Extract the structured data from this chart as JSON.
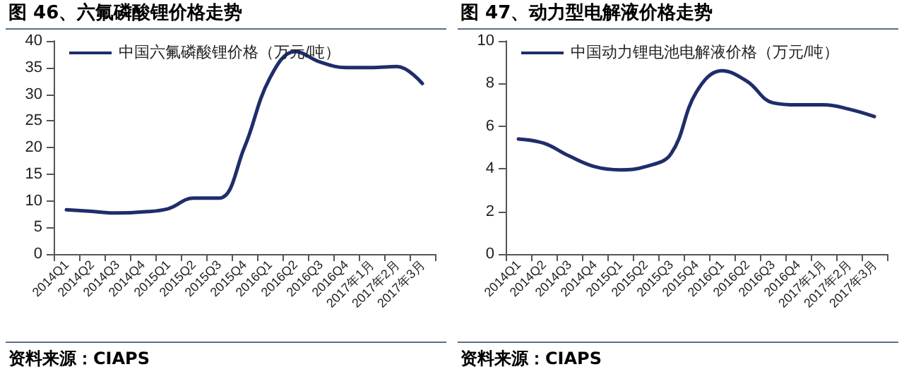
{
  "chart_data": [
    {
      "type": "line",
      "title": "图 46、六氟磷酸锂价格走势",
      "categories": [
        "2014Q1",
        "2014Q2",
        "2014Q3",
        "2014Q4",
        "2015Q1",
        "2015Q2",
        "2015Q3",
        "2015Q4",
        "2016Q1",
        "2016Q2",
        "2016Q3",
        "2016Q4",
        "2017年1月",
        "2017年2月",
        "2017年3月"
      ],
      "series": [
        {
          "name": "中国六氟磷酸锂价格（万元/吨）",
          "color": "#1f2d6b",
          "values": [
            8.3,
            8.0,
            7.7,
            7.9,
            8.5,
            10.5,
            10.5,
            20,
            33,
            38,
            36,
            35,
            35,
            35.2,
            32
          ]
        }
      ],
      "ylim": [
        0,
        40
      ],
      "yticks": [
        0,
        5,
        10,
        15,
        20,
        25,
        30,
        35,
        40
      ],
      "grid": false,
      "legend": "top left",
      "marker": "none",
      "annotations": [
        "资料来源：CIAPS"
      ]
    },
    {
      "type": "line",
      "title": "图 47、动力型电解液价格走势",
      "categories": [
        "2014Q1",
        "2014Q2",
        "2014Q3",
        "2014Q4",
        "2015Q1",
        "2015Q2",
        "2015Q3",
        "2015Q4",
        "2016Q1",
        "2016Q2",
        "2016Q3",
        "2016Q4",
        "2017年1月",
        "2017年2月",
        "2017年3月"
      ],
      "series": [
        {
          "name": "中国动力锂电池电解液价格（万元/吨）",
          "color": "#1f2d6b",
          "values": [
            5.4,
            5.2,
            4.6,
            4.1,
            3.95,
            4.1,
            4.7,
            7.6,
            8.6,
            8.1,
            7.1,
            7.0,
            7.0,
            6.8,
            6.45
          ]
        }
      ],
      "ylim": [
        0,
        10
      ],
      "yticks": [
        0,
        2,
        4,
        6,
        8,
        10
      ],
      "grid": false,
      "legend": "top left",
      "marker": "none",
      "annotations": [
        "资料来源：CIAPS"
      ]
    }
  ]
}
